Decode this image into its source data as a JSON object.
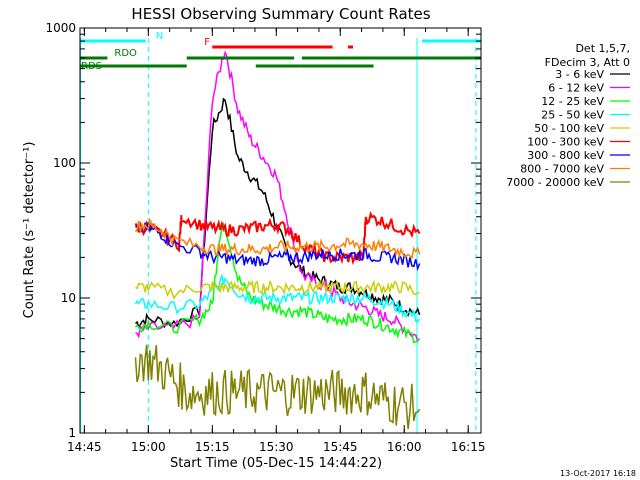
{
  "chart_data": {
    "type": "line",
    "title": "HESSI Observing Summary Count Rates",
    "xlabel": "Start Time (05-Dec-15 14:44:22)",
    "ylabel": "Count Rate (s⁻¹ detector⁻¹)",
    "yscale": "log",
    "ylim": [
      1,
      1000
    ],
    "xlim": [
      14.733,
      16.3
    ],
    "x_ticks": [
      {
        "value": 14.75,
        "label": "14:45"
      },
      {
        "value": 15.0,
        "label": "15:00"
      },
      {
        "value": 15.25,
        "label": "15:15"
      },
      {
        "value": 15.5,
        "label": "15:30"
      },
      {
        "value": 15.75,
        "label": "15:45"
      },
      {
        "value": 16.0,
        "label": "16:00"
      },
      {
        "value": 16.25,
        "label": "16:15"
      }
    ],
    "y_ticks": [
      {
        "value": 1,
        "label": "1"
      },
      {
        "value": 10,
        "label": "10"
      },
      {
        "value": 100,
        "label": "100"
      },
      {
        "value": 1000,
        "label": "1000"
      }
    ],
    "legend_header": [
      "Det 1,5,7,",
      "FDecim 3, Att 0"
    ],
    "series": [
      {
        "name": "3 - 6 keV",
        "color": "#000000",
        "x": [
          14.95,
          15.0,
          15.1,
          15.2,
          15.25,
          15.3,
          15.35,
          15.4,
          15.45,
          15.5,
          15.55,
          15.6,
          15.65,
          15.7,
          15.75,
          15.8,
          15.85,
          15.9,
          15.95,
          16.0,
          16.06
        ],
        "y": [
          6.5,
          7,
          6.5,
          8,
          180,
          300,
          110,
          80,
          60,
          35,
          20,
          16,
          14,
          13,
          12,
          12,
          11,
          10,
          9.5,
          8.5,
          7.5
        ]
      },
      {
        "name": "6 - 12 keV",
        "color": "#ff00ff",
        "x": [
          14.95,
          15.0,
          15.1,
          15.2,
          15.25,
          15.3,
          15.35,
          15.4,
          15.45,
          15.5,
          15.55,
          15.6,
          15.65,
          15.7,
          15.75,
          15.8,
          15.85,
          15.9,
          15.95,
          16.0,
          16.06
        ],
        "y": [
          5.5,
          6,
          6,
          7,
          300,
          700,
          250,
          150,
          110,
          80,
          35,
          15,
          13,
          12,
          10,
          9,
          8.5,
          7.5,
          7,
          6,
          5
        ]
      },
      {
        "name": "12 - 25 keV",
        "color": "#00ff00",
        "x": [
          14.95,
          15.0,
          15.1,
          15.2,
          15.25,
          15.28,
          15.3,
          15.35,
          15.4,
          15.45,
          15.5,
          15.55,
          15.6,
          15.65,
          15.7,
          15.75,
          15.8,
          15.85,
          15.9,
          15.95,
          16.0,
          16.06
        ],
        "y": [
          6,
          6.5,
          6,
          7,
          9,
          30,
          35,
          14,
          10,
          9,
          8.5,
          8,
          8,
          7.5,
          7,
          7,
          7,
          7,
          6.5,
          6,
          5.5,
          5
        ]
      },
      {
        "name": "25 - 50 keV",
        "color": "#00ffff",
        "x": [
          14.95,
          15.0,
          15.1,
          15.2,
          15.25,
          15.3,
          15.35,
          15.4,
          15.45,
          15.5,
          15.55,
          15.6,
          15.65,
          15.7,
          15.75,
          15.8,
          15.85,
          15.9,
          15.95,
          16.0,
          16.06
        ],
        "y": [
          9,
          9,
          8.5,
          9,
          11,
          14,
          11,
          10,
          10,
          10,
          10,
          10,
          10,
          10,
          10,
          10,
          10,
          9.5,
          9,
          8,
          7
        ]
      },
      {
        "name": "50 - 100 keV",
        "color": "#cccc00",
        "x": [
          14.95,
          15.0,
          15.1,
          15.2,
          15.25,
          15.3,
          15.35,
          15.4,
          15.45,
          15.5,
          15.55,
          15.6,
          15.65,
          15.7,
          15.75,
          15.8,
          15.85,
          15.9,
          15.95,
          16.0,
          16.06
        ],
        "y": [
          12,
          12,
          11,
          12,
          12,
          12,
          12,
          12,
          12,
          12,
          12,
          12,
          12,
          12,
          12,
          12,
          12,
          12,
          12,
          12,
          11
        ]
      },
      {
        "name": "100 - 300 keV",
        "color": "#ff0000",
        "x": [
          14.95,
          15.0,
          15.05,
          15.12,
          15.13,
          15.2,
          15.25,
          15.3,
          15.35,
          15.4,
          15.45,
          15.5,
          15.55,
          15.6,
          15.65,
          15.7,
          15.75,
          15.8,
          15.84,
          15.85,
          15.9,
          15.95,
          16.0,
          16.06
        ],
        "y": [
          33,
          33,
          30,
          25,
          40,
          35,
          33,
          32,
          32,
          33,
          34,
          35,
          32,
          25,
          22,
          20,
          20,
          20,
          20,
          40,
          38,
          35,
          32,
          30
        ]
      },
      {
        "name": "300 - 800 keV",
        "color": "#0000ff",
        "x": [
          14.95,
          15.0,
          15.05,
          15.1,
          15.2,
          15.25,
          15.3,
          15.35,
          15.4,
          15.45,
          15.5,
          15.55,
          15.6,
          15.65,
          15.7,
          15.75,
          15.8,
          15.85,
          15.9,
          15.95,
          16.0,
          16.06
        ],
        "y": [
          32,
          33,
          30,
          25,
          22,
          20,
          20,
          19,
          19,
          19,
          20,
          20,
          20,
          21,
          21,
          21,
          21,
          21,
          20,
          20,
          19,
          18
        ]
      },
      {
        "name": "800 - 7000 keV",
        "color": "#ff8000",
        "x": [
          14.95,
          15.0,
          15.05,
          15.1,
          15.2,
          15.25,
          15.3,
          15.35,
          15.4,
          15.45,
          15.5,
          15.55,
          15.6,
          15.65,
          15.7,
          15.75,
          15.8,
          15.85,
          15.9,
          15.95,
          16.0,
          16.06
        ],
        "y": [
          34,
          35,
          32,
          27,
          24,
          23,
          23,
          23,
          23,
          23,
          24,
          24,
          24,
          24,
          24,
          25,
          25,
          25,
          24,
          23,
          22,
          21
        ]
      },
      {
        "name": "7000 - 20000 keV",
        "color": "#808000",
        "x": [
          14.95,
          15.0,
          15.05,
          15.1,
          15.15,
          15.2,
          15.25,
          15.3,
          15.35,
          15.4,
          15.45,
          15.5,
          15.55,
          15.6,
          15.65,
          15.7,
          15.75,
          15.8,
          15.85,
          15.9,
          15.95,
          16.0,
          16.06
        ],
        "y": [
          3.5,
          3.5,
          3,
          2.5,
          2,
          2,
          2,
          2,
          2,
          2,
          2,
          2,
          2,
          2,
          2,
          2,
          2,
          2,
          2,
          1.8,
          1.7,
          1.6,
          1.5
        ]
      }
    ],
    "flags": [
      {
        "label": "N",
        "color": "#00ffff",
        "segments": [
          [
            14.735,
            14.99
          ],
          [
            16.07,
            16.3
          ]
        ]
      },
      {
        "label": "F",
        "color": "#ff0000",
        "segments": [
          [
            15.25,
            15.72
          ],
          [
            15.78,
            15.8
          ]
        ]
      },
      {
        "label": "RDO",
        "color": "#007a00",
        "segments": [
          [
            14.735,
            14.84
          ],
          [
            15.15,
            15.57
          ],
          [
            15.6,
            16.3
          ]
        ]
      },
      {
        "label": "RDS",
        "color": "#007a00",
        "segments": [
          [
            14.735,
            15.15
          ],
          [
            15.42,
            15.6
          ],
          [
            15.6,
            15.88
          ]
        ]
      }
    ],
    "night_boundaries": {
      "color": "#00ffff",
      "x": [
        14.735,
        15.0,
        16.05,
        16.28
      ]
    },
    "footnote": "13-Oct-2017 16:18"
  }
}
